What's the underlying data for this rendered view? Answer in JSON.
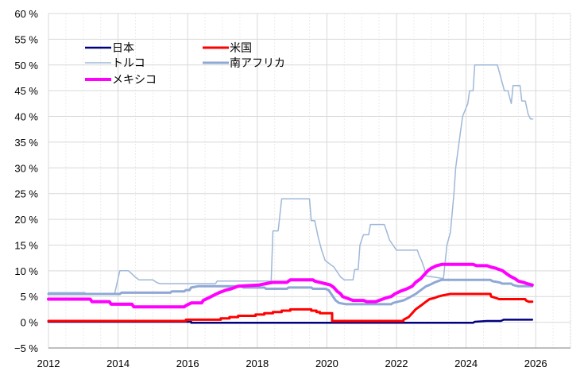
{
  "chart_data": {
    "type": "line",
    "title": "",
    "xlabel": "",
    "ylabel": "",
    "xlim": [
      2012,
      2027
    ],
    "ylim": [
      -5,
      60
    ],
    "grid": true,
    "legend_position": "top-left",
    "x_ticks": [
      {
        "value": 2012,
        "label": "2012"
      },
      {
        "value": 2014,
        "label": "2014"
      },
      {
        "value": 2016,
        "label": "2016"
      },
      {
        "value": 2018,
        "label": "2018"
      },
      {
        "value": 2020,
        "label": "2020"
      },
      {
        "value": 2022,
        "label": "2022"
      },
      {
        "value": 2024,
        "label": "2024"
      },
      {
        "value": 2026,
        "label": "2026"
      }
    ],
    "y_ticks": [
      {
        "value": 60,
        "label": "60 %"
      },
      {
        "value": 55,
        "label": "55 %"
      },
      {
        "value": 50,
        "label": "50 %"
      },
      {
        "value": 45,
        "label": "45 %"
      },
      {
        "value": 40,
        "label": "40 %"
      },
      {
        "value": 35,
        "label": "35 %"
      },
      {
        "value": 30,
        "label": "30 %"
      },
      {
        "value": 25,
        "label": "25 %"
      },
      {
        "value": 20,
        "label": "20 %"
      },
      {
        "value": 15,
        "label": "15 %"
      },
      {
        "value": 10,
        "label": "10 %"
      },
      {
        "value": 5,
        "label": "5 %"
      },
      {
        "value": 0,
        "label": "0 %"
      },
      {
        "value": -5,
        "label": "−5 %"
      }
    ],
    "series": [
      {
        "name": "日本",
        "color": "#00007f",
        "width": 2.5,
        "points": [
          [
            2012.0,
            0.1
          ],
          [
            2016.1,
            0.1
          ],
          [
            2016.1,
            -0.1
          ],
          [
            2024.2,
            -0.1
          ],
          [
            2024.25,
            0.1
          ],
          [
            2024.6,
            0.25
          ],
          [
            2025.0,
            0.25
          ],
          [
            2025.08,
            0.5
          ],
          [
            2025.9,
            0.5
          ]
        ]
      },
      {
        "name": "米国",
        "color": "#ff0000",
        "width": 3,
        "points": [
          [
            2012.0,
            0.25
          ],
          [
            2015.95,
            0.25
          ],
          [
            2015.95,
            0.5
          ],
          [
            2016.95,
            0.5
          ],
          [
            2016.95,
            0.75
          ],
          [
            2017.2,
            0.75
          ],
          [
            2017.2,
            1.0
          ],
          [
            2017.45,
            1.0
          ],
          [
            2017.45,
            1.25
          ],
          [
            2017.95,
            1.25
          ],
          [
            2017.95,
            1.5
          ],
          [
            2018.2,
            1.5
          ],
          [
            2018.2,
            1.75
          ],
          [
            2018.45,
            1.75
          ],
          [
            2018.45,
            2.0
          ],
          [
            2018.7,
            2.0
          ],
          [
            2018.7,
            2.25
          ],
          [
            2018.95,
            2.25
          ],
          [
            2018.95,
            2.5
          ],
          [
            2019.55,
            2.5
          ],
          [
            2019.55,
            2.25
          ],
          [
            2019.7,
            2.25
          ],
          [
            2019.7,
            2.0
          ],
          [
            2019.8,
            2.0
          ],
          [
            2019.8,
            1.75
          ],
          [
            2020.15,
            1.75
          ],
          [
            2020.15,
            0.25
          ],
          [
            2022.2,
            0.25
          ],
          [
            2022.2,
            0.5
          ],
          [
            2022.35,
            1.0
          ],
          [
            2022.45,
            1.75
          ],
          [
            2022.55,
            2.5
          ],
          [
            2022.7,
            3.25
          ],
          [
            2022.85,
            4.0
          ],
          [
            2022.95,
            4.5
          ],
          [
            2023.1,
            4.75
          ],
          [
            2023.2,
            5.0
          ],
          [
            2023.35,
            5.25
          ],
          [
            2023.55,
            5.5
          ],
          [
            2024.7,
            5.5
          ],
          [
            2024.72,
            5.0
          ],
          [
            2024.85,
            4.75
          ],
          [
            2024.95,
            4.5
          ],
          [
            2025.7,
            4.5
          ],
          [
            2025.72,
            4.25
          ],
          [
            2025.8,
            4.0
          ],
          [
            2025.9,
            4.0
          ]
        ]
      },
      {
        "name": "トルコ",
        "color": "#9fb8d8",
        "width": 1.5,
        "points": [
          [
            2012.0,
            5.75
          ],
          [
            2013.05,
            5.75
          ],
          [
            2013.05,
            5.5
          ],
          [
            2013.9,
            5.5
          ],
          [
            2014.05,
            10.0
          ],
          [
            2014.3,
            10.0
          ],
          [
            2014.5,
            8.75
          ],
          [
            2014.6,
            8.25
          ],
          [
            2015.0,
            8.25
          ],
          [
            2015.1,
            7.75
          ],
          [
            2015.2,
            7.5
          ],
          [
            2016.8,
            7.5
          ],
          [
            2016.85,
            8.0
          ],
          [
            2018.4,
            8.0
          ],
          [
            2018.45,
            17.75
          ],
          [
            2018.6,
            17.75
          ],
          [
            2018.7,
            24.0
          ],
          [
            2019.5,
            24.0
          ],
          [
            2019.55,
            19.75
          ],
          [
            2019.65,
            19.75
          ],
          [
            2019.75,
            16.5
          ],
          [
            2019.85,
            14.0
          ],
          [
            2019.95,
            12.0
          ],
          [
            2020.1,
            11.25
          ],
          [
            2020.2,
            10.75
          ],
          [
            2020.3,
            9.75
          ],
          [
            2020.35,
            9.25
          ],
          [
            2020.4,
            8.75
          ],
          [
            2020.5,
            8.25
          ],
          [
            2020.75,
            8.25
          ],
          [
            2020.8,
            10.25
          ],
          [
            2020.9,
            10.25
          ],
          [
            2020.95,
            15.0
          ],
          [
            2021.05,
            17.0
          ],
          [
            2021.2,
            17.0
          ],
          [
            2021.25,
            19.0
          ],
          [
            2021.65,
            19.0
          ],
          [
            2021.7,
            18.0
          ],
          [
            2021.8,
            16.0
          ],
          [
            2021.9,
            15.0
          ],
          [
            2022.0,
            14.0
          ],
          [
            2022.6,
            14.0
          ],
          [
            2022.65,
            13.0
          ],
          [
            2022.72,
            12.0
          ],
          [
            2022.8,
            10.5
          ],
          [
            2022.85,
            9.0
          ],
          [
            2023.35,
            8.5
          ],
          [
            2023.45,
            15.0
          ],
          [
            2023.55,
            17.5
          ],
          [
            2023.65,
            25.0
          ],
          [
            2023.7,
            30.0
          ],
          [
            2023.8,
            35.0
          ],
          [
            2023.9,
            40.0
          ],
          [
            2024.05,
            42.5
          ],
          [
            2024.1,
            45.0
          ],
          [
            2024.2,
            45.0
          ],
          [
            2024.25,
            50.0
          ],
          [
            2024.9,
            50.0
          ],
          [
            2025.0,
            47.5
          ],
          [
            2025.1,
            45.0
          ],
          [
            2025.2,
            45.0
          ],
          [
            2025.3,
            42.5
          ],
          [
            2025.35,
            46.0
          ],
          [
            2025.55,
            46.0
          ],
          [
            2025.6,
            43.0
          ],
          [
            2025.7,
            43.0
          ],
          [
            2025.78,
            40.5
          ],
          [
            2025.85,
            39.5
          ],
          [
            2025.92,
            39.5
          ]
        ]
      },
      {
        "name": "南アフリカ",
        "color": "#8fa8d4",
        "width": 3,
        "points": [
          [
            2012.0,
            5.5
          ],
          [
            2014.0,
            5.5
          ],
          [
            2014.05,
            5.5
          ],
          [
            2014.1,
            5.75
          ],
          [
            2014.5,
            5.75
          ],
          [
            2014.55,
            5.75
          ],
          [
            2015.5,
            5.75
          ],
          [
            2015.55,
            6.0
          ],
          [
            2015.9,
            6.0
          ],
          [
            2015.95,
            6.25
          ],
          [
            2016.05,
            6.25
          ],
          [
            2016.1,
            6.75
          ],
          [
            2016.3,
            7.0
          ],
          [
            2017.55,
            7.0
          ],
          [
            2017.6,
            6.75
          ],
          [
            2018.2,
            6.75
          ],
          [
            2018.25,
            6.5
          ],
          [
            2018.85,
            6.5
          ],
          [
            2018.9,
            6.75
          ],
          [
            2019.55,
            6.75
          ],
          [
            2019.6,
            6.5
          ],
          [
            2019.95,
            6.5
          ],
          [
            2020.05,
            6.25
          ],
          [
            2020.15,
            5.25
          ],
          [
            2020.25,
            4.25
          ],
          [
            2020.35,
            3.75
          ],
          [
            2020.55,
            3.5
          ],
          [
            2021.85,
            3.5
          ],
          [
            2021.9,
            3.75
          ],
          [
            2022.05,
            4.0
          ],
          [
            2022.2,
            4.25
          ],
          [
            2022.35,
            4.75
          ],
          [
            2022.55,
            5.5
          ],
          [
            2022.7,
            6.25
          ],
          [
            2022.85,
            7.0
          ],
          [
            2022.95,
            7.25
          ],
          [
            2023.1,
            7.75
          ],
          [
            2023.3,
            8.25
          ],
          [
            2024.7,
            8.25
          ],
          [
            2024.75,
            8.0
          ],
          [
            2024.95,
            7.75
          ],
          [
            2025.05,
            7.5
          ],
          [
            2025.3,
            7.5
          ],
          [
            2025.35,
            7.25
          ],
          [
            2025.5,
            7.0
          ],
          [
            2025.9,
            7.0
          ]
        ]
      },
      {
        "name": "メキシコ",
        "color": "#ff00ff",
        "width": 4,
        "points": [
          [
            2012.0,
            4.5
          ],
          [
            2013.2,
            4.5
          ],
          [
            2013.25,
            4.0
          ],
          [
            2013.75,
            4.0
          ],
          [
            2013.8,
            3.5
          ],
          [
            2014.4,
            3.5
          ],
          [
            2014.45,
            3.0
          ],
          [
            2015.9,
            3.0
          ],
          [
            2015.95,
            3.25
          ],
          [
            2016.1,
            3.75
          ],
          [
            2016.4,
            3.75
          ],
          [
            2016.45,
            4.25
          ],
          [
            2016.6,
            4.75
          ],
          [
            2016.75,
            5.25
          ],
          [
            2016.9,
            5.75
          ],
          [
            2017.1,
            6.25
          ],
          [
            2017.25,
            6.5
          ],
          [
            2017.45,
            7.0
          ],
          [
            2018.05,
            7.25
          ],
          [
            2018.25,
            7.5
          ],
          [
            2018.45,
            7.75
          ],
          [
            2018.85,
            7.75
          ],
          [
            2018.95,
            8.25
          ],
          [
            2019.6,
            8.25
          ],
          [
            2019.65,
            8.0
          ],
          [
            2019.8,
            7.75
          ],
          [
            2019.95,
            7.5
          ],
          [
            2020.1,
            7.25
          ],
          [
            2020.2,
            6.75
          ],
          [
            2020.3,
            6.0
          ],
          [
            2020.4,
            5.5
          ],
          [
            2020.45,
            5.0
          ],
          [
            2020.55,
            4.75
          ],
          [
            2020.65,
            4.5
          ],
          [
            2020.75,
            4.25
          ],
          [
            2021.05,
            4.25
          ],
          [
            2021.15,
            4.0
          ],
          [
            2021.4,
            4.0
          ],
          [
            2021.5,
            4.25
          ],
          [
            2021.6,
            4.5
          ],
          [
            2021.7,
            4.75
          ],
          [
            2021.85,
            5.0
          ],
          [
            2021.95,
            5.5
          ],
          [
            2022.1,
            6.0
          ],
          [
            2022.3,
            6.5
          ],
          [
            2022.45,
            7.0
          ],
          [
            2022.55,
            7.75
          ],
          [
            2022.7,
            8.5
          ],
          [
            2022.8,
            9.25
          ],
          [
            2022.9,
            10.0
          ],
          [
            2023.0,
            10.5
          ],
          [
            2023.15,
            11.0
          ],
          [
            2023.3,
            11.25
          ],
          [
            2024.2,
            11.25
          ],
          [
            2024.3,
            11.0
          ],
          [
            2024.6,
            11.0
          ],
          [
            2024.7,
            10.75
          ],
          [
            2024.85,
            10.5
          ],
          [
            2025.05,
            10.0
          ],
          [
            2025.15,
            9.5
          ],
          [
            2025.25,
            9.0
          ],
          [
            2025.4,
            8.5
          ],
          [
            2025.5,
            8.0
          ],
          [
            2025.65,
            7.75
          ],
          [
            2025.75,
            7.5
          ],
          [
            2025.9,
            7.25
          ]
        ]
      }
    ]
  }
}
